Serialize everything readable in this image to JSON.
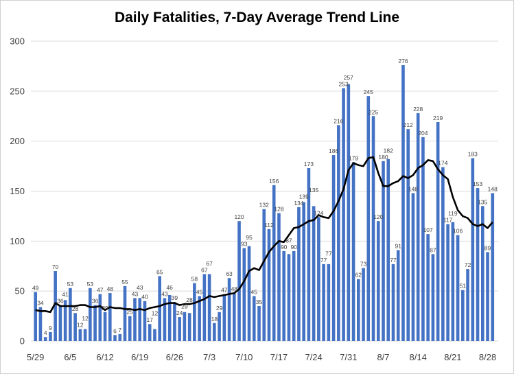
{
  "chart_data": {
    "type": "bar",
    "title": "Daily Fatalities, 7-Day Average Trend Line",
    "xlabel": "",
    "ylabel": "",
    "ylim": [
      0,
      300
    ],
    "yticks": [
      "0",
      "50",
      "100",
      "150",
      "200",
      "250",
      "300"
    ],
    "xtick_labels": [
      "5/29",
      "6/5",
      "6/12",
      "6/19",
      "6/26",
      "7/3",
      "7/10",
      "7/17",
      "7/24",
      "7/31",
      "8/7",
      "8/14",
      "8/21",
      "8/28"
    ],
    "grid": true,
    "legend": "none",
    "bar_color": "#4472C4",
    "line_color": "#000000",
    "values": [
      49,
      34,
      4,
      9,
      70,
      36,
      41,
      53,
      28,
      12,
      12,
      53,
      36,
      47,
      29,
      48,
      6,
      7,
      55,
      25,
      43,
      43,
      40,
      17,
      12,
      65,
      43,
      46,
      39,
      24,
      29,
      28,
      58,
      45,
      67,
      67,
      18,
      29,
      47,
      63,
      48,
      120,
      93,
      95,
      45,
      35,
      132,
      112,
      156,
      128,
      90,
      87,
      90,
      134,
      139,
      173,
      135,
      124,
      77,
      77,
      186,
      216,
      253,
      257,
      179,
      62,
      73,
      245,
      225,
      120,
      180,
      182,
      77,
      91,
      276,
      212,
      148,
      228,
      204,
      107,
      87,
      219,
      174,
      117,
      119,
      106,
      51,
      72,
      183,
      153,
      135,
      89,
      148
    ],
    "trend_7day_avg": [
      31,
      30,
      30,
      29,
      38,
      35,
      35,
      35,
      35,
      36,
      36,
      34,
      34,
      35,
      31,
      34,
      33,
      33,
      32,
      32,
      31,
      32,
      31,
      33,
      34,
      35,
      37,
      38,
      38,
      36,
      37,
      37,
      38,
      40,
      42,
      45,
      44,
      45,
      46,
      47,
      48,
      52,
      60,
      70,
      73,
      71,
      80,
      89,
      95,
      100,
      99,
      106,
      113,
      114,
      117,
      120,
      121,
      126,
      124,
      123,
      130,
      140,
      152,
      171,
      178,
      176,
      175,
      183,
      184,
      168,
      155,
      155,
      158,
      160,
      165,
      163,
      166,
      173,
      176,
      181,
      180,
      172,
      166,
      162,
      144,
      131,
      125,
      123,
      117,
      115,
      117,
      113,
      119
    ]
  }
}
